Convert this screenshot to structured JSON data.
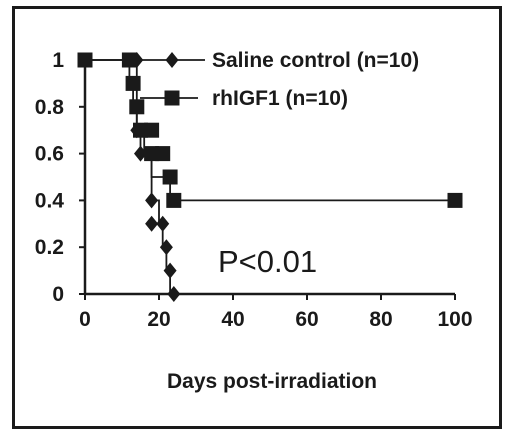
{
  "chart_data": {
    "type": "line",
    "subtype": "kaplan-meier step survival curve",
    "title": "",
    "xlabel": "Days post-irradiation",
    "ylabel": "",
    "xlim": [
      0,
      100
    ],
    "ylim": [
      0,
      1
    ],
    "xticks": [
      "0",
      "20",
      "40",
      "60",
      "80",
      "100"
    ],
    "yticks": [
      "0",
      "0.2",
      "0.4",
      "0.6",
      "0.8",
      "1"
    ],
    "grid": false,
    "legend_placement": "top-right (inline labels)",
    "annotation": "P<0.01",
    "series": [
      {
        "name": "Saline control (n=10)",
        "marker": "diamond",
        "color": "#1a1a1a",
        "x": [
          0,
          14,
          14,
          15,
          15,
          18,
          18,
          20,
          20,
          21,
          21,
          22,
          22,
          23,
          23,
          24
        ],
        "y": [
          1,
          1,
          0.7,
          0.7,
          0.6,
          0.6,
          0.4,
          0.4,
          0.3,
          0.3,
          0.2,
          0.2,
          0.1,
          0.1,
          0,
          0
        ],
        "points": [
          [
            14,
            1
          ],
          [
            14,
            0.7
          ],
          [
            15,
            0.6
          ],
          [
            18,
            0.4
          ],
          [
            18,
            0.3
          ],
          [
            21,
            0.3
          ],
          [
            22,
            0.2
          ],
          [
            23,
            0.1
          ],
          [
            24,
            0
          ]
        ]
      },
      {
        "name": "rhIGF1 (n=10)",
        "marker": "square",
        "color": "#1a1a1a",
        "x": [
          0,
          12,
          12,
          13,
          13,
          14,
          14,
          16,
          16,
          18,
          18,
          23,
          23,
          24,
          24,
          100
        ],
        "y": [
          1,
          1,
          0.9,
          0.9,
          0.8,
          0.8,
          0.7,
          0.7,
          0.6,
          0.6,
          0.5,
          0.5,
          0.4,
          0.4,
          0.4,
          0.4
        ],
        "points": [
          [
            0,
            1
          ],
          [
            12,
            1
          ],
          [
            13,
            0.9
          ],
          [
            14,
            0.8
          ],
          [
            15,
            0.7
          ],
          [
            18,
            0.7
          ],
          [
            18,
            0.6
          ],
          [
            21,
            0.6
          ],
          [
            23,
            0.5
          ],
          [
            24,
            0.4
          ],
          [
            100,
            0.4
          ]
        ]
      }
    ]
  }
}
